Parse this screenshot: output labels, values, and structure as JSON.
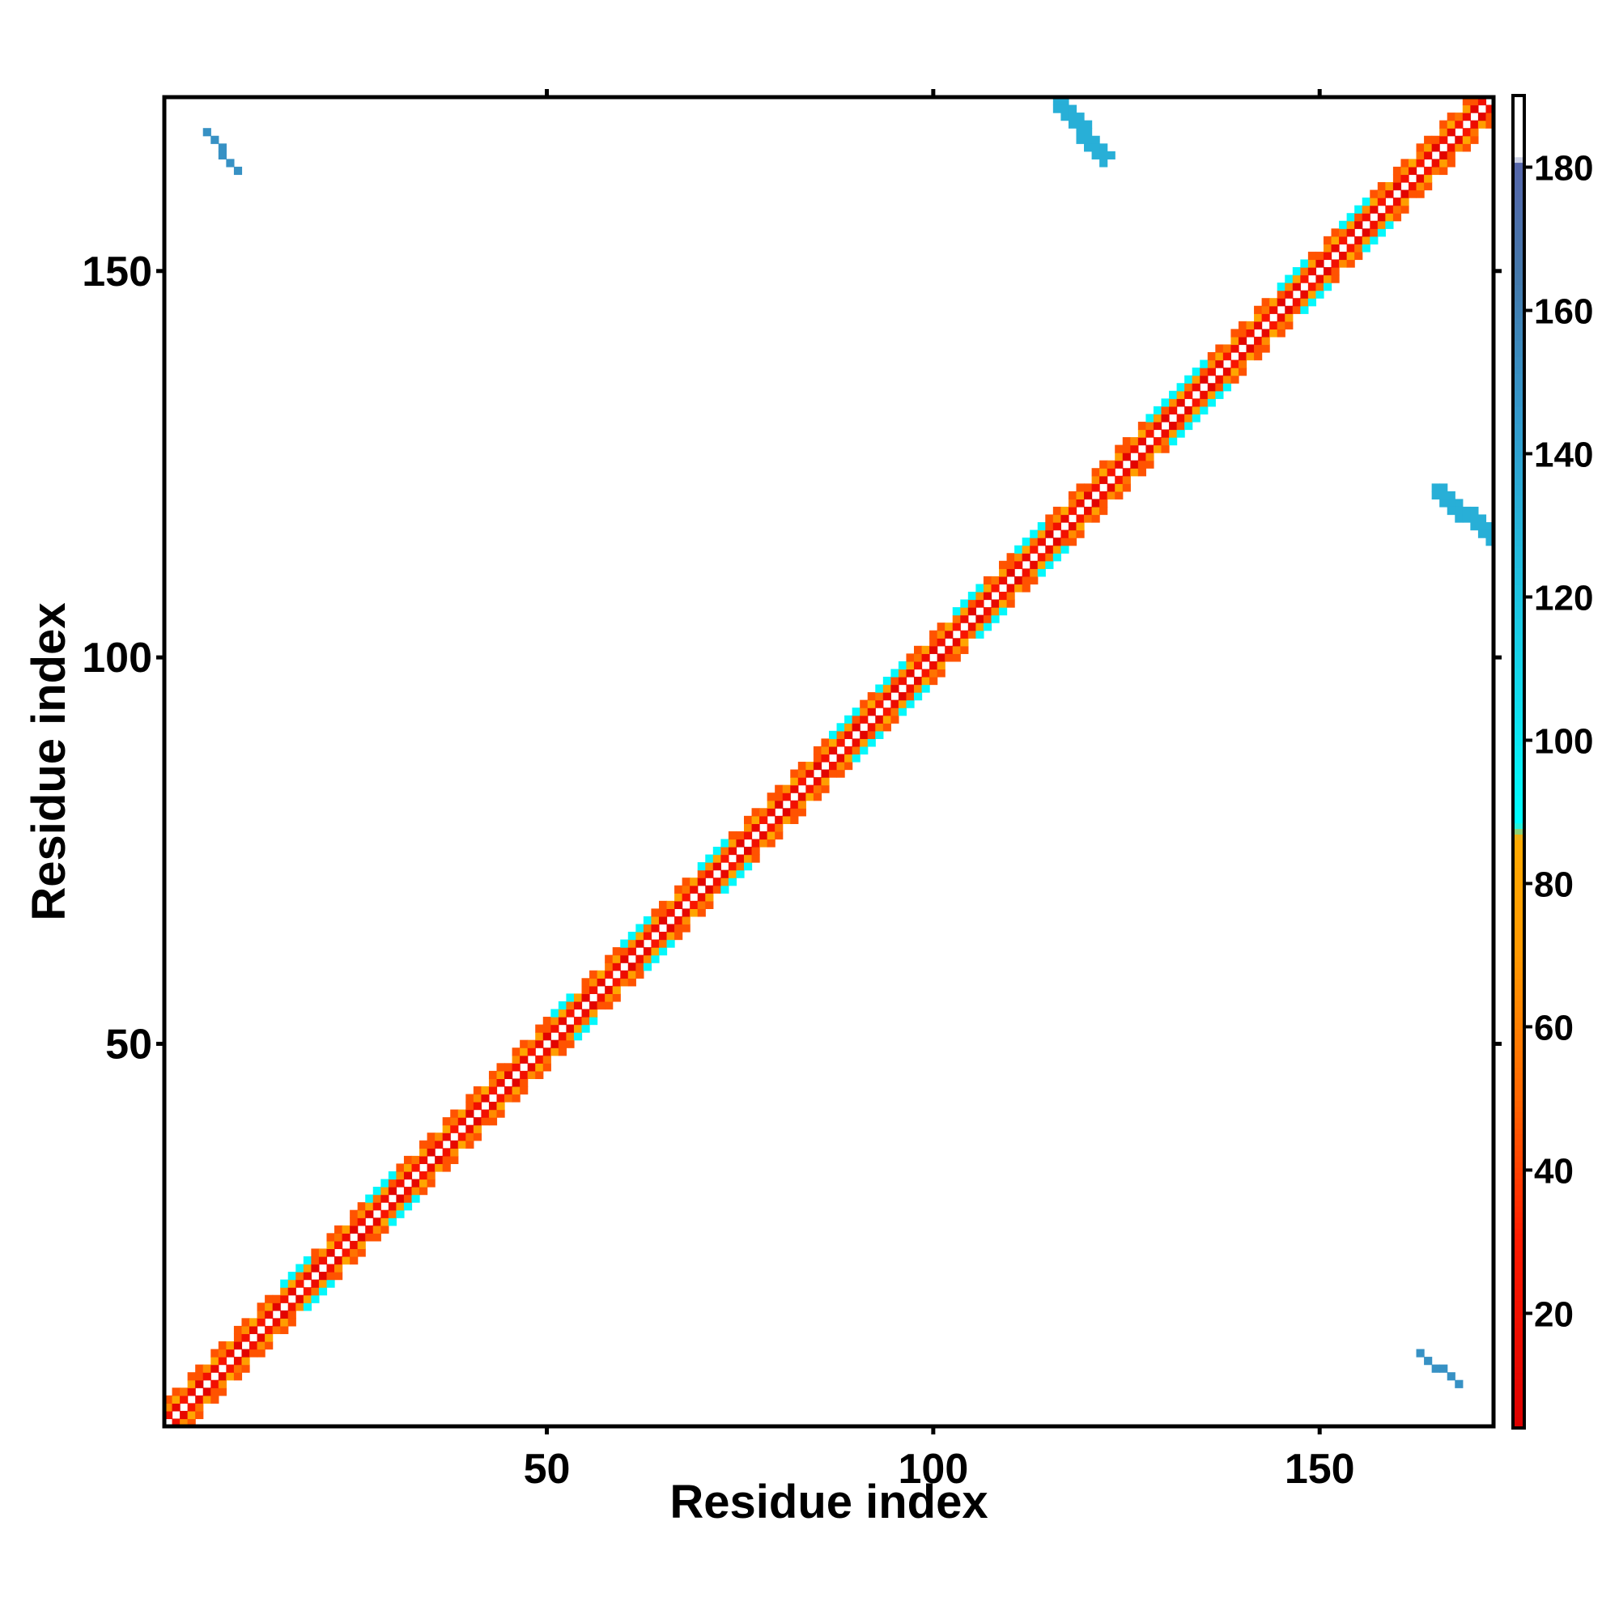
{
  "chart_data": {
    "type": "heatmap",
    "description_kind": "contact-map",
    "title": "",
    "xlabel": "Residue index",
    "ylabel": "Residue index",
    "xlim": [
      1,
      172
    ],
    "ylim": [
      1,
      172
    ],
    "x_ticks": [
      50,
      100,
      150
    ],
    "y_ticks": [
      50,
      100,
      150
    ],
    "colorbar": {
      "ticks": [
        20,
        40,
        60,
        80,
        100,
        120,
        140,
        160,
        180
      ],
      "range": [
        4,
        190
      ],
      "stops": [
        {
          "value": 4,
          "color": "#dd0000"
        },
        {
          "value": 30,
          "color": "#ff1a00"
        },
        {
          "value": 50,
          "color": "#ff6600"
        },
        {
          "value": 70,
          "color": "#ff9900"
        },
        {
          "value": 86,
          "color": "#ffaa00"
        },
        {
          "value": 88,
          "color": "#00ffff"
        },
        {
          "value": 105,
          "color": "#11ddee"
        },
        {
          "value": 125,
          "color": "#22bbdd"
        },
        {
          "value": 145,
          "color": "#3399cc"
        },
        {
          "value": 165,
          "color": "#4477aa"
        },
        {
          "value": 180,
          "color": "#5566aa"
        },
        {
          "value": 181,
          "color": "#ffffff"
        },
        {
          "value": 190,
          "color": "#ffffff"
        }
      ]
    },
    "diagonal_band": {
      "from": 1,
      "to": 172,
      "inner_values": [
        8,
        12,
        16,
        20,
        25
      ],
      "outer_values": [
        45,
        55,
        65,
        75,
        82
      ],
      "helix_segments": [
        [
          16,
          19
        ],
        [
          27,
          30
        ],
        [
          51,
          53
        ],
        [
          60,
          63
        ],
        [
          70,
          73
        ],
        [
          87,
          90
        ],
        [
          93,
          96
        ],
        [
          103,
          106
        ],
        [
          111,
          114
        ],
        [
          128,
          131
        ],
        [
          132,
          135
        ],
        [
          145,
          148
        ],
        [
          153,
          156
        ]
      ],
      "helix_value": 92
    },
    "off_diagonal_contacts": [
      {
        "i_range": [
          6,
          10
        ],
        "j_range": [
          163,
          168
        ],
        "value": 150
      },
      {
        "i_range": [
          116,
          122
        ],
        "j_range": [
          165,
          172
        ],
        "value": 132
      },
      {
        "i_range": [
          163,
          168
        ],
        "j_range": [
          6,
          10
        ],
        "value": 150
      },
      {
        "i_range": [
          165,
          172
        ],
        "j_range": [
          116,
          122
        ],
        "value": 132
      }
    ]
  }
}
